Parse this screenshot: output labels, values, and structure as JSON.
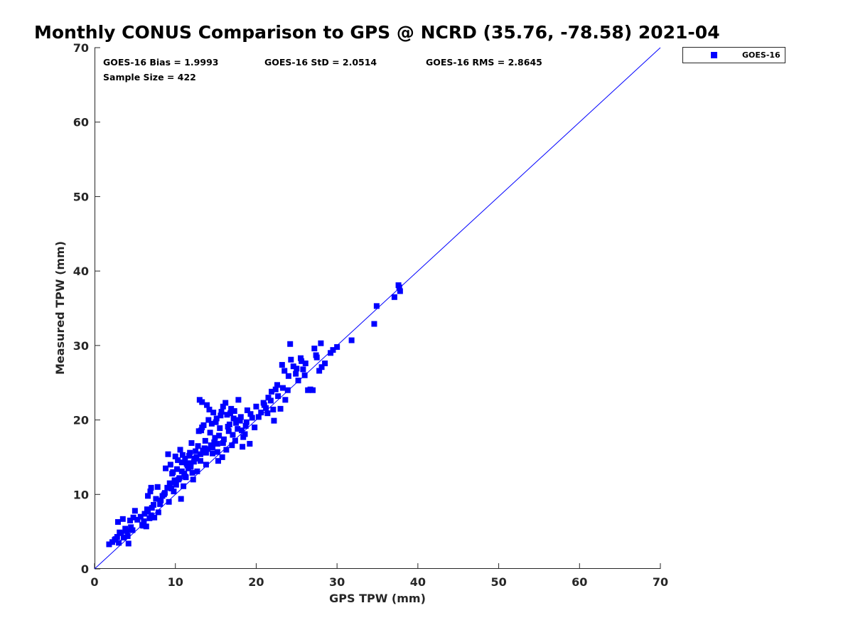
{
  "chart_data": {
    "type": "scatter",
    "title": "Monthly CONUS Comparison to GPS @ NCRD (35.76, -78.58) 2021-04",
    "xlabel": "GPS TPW (mm)",
    "ylabel": "Measured TPW (mm)",
    "xlim": [
      0,
      70
    ],
    "ylim": [
      0,
      70
    ],
    "xticks": [
      "0",
      "10",
      "20",
      "30",
      "40",
      "50",
      "60",
      "70"
    ],
    "yticks": [
      "0",
      "10",
      "20",
      "30",
      "40",
      "50",
      "60",
      "70"
    ],
    "grid": false,
    "legend": {
      "position": "outside top-right",
      "entries": [
        "GOES-16"
      ]
    },
    "stats": {
      "bias": "GOES-16 Bias = 1.9993",
      "std": "GOES-16 StD = 2.0514",
      "rms": "GOES-16 RMS = 2.8645",
      "sample": "Sample Size = 422"
    },
    "reference_line": {
      "name": "1:1 line",
      "x": [
        0,
        70
      ],
      "y": [
        0,
        70
      ]
    },
    "series": [
      {
        "name": "GOES-16",
        "color": "#0000ff",
        "marker": "square",
        "points": [
          [
            1.8,
            3.3
          ],
          [
            2.2,
            3.6
          ],
          [
            2.5,
            3.9
          ],
          [
            2.8,
            4.3
          ],
          [
            3.0,
            3.5
          ],
          [
            3.3,
            4.8
          ],
          [
            3.6,
            4.2
          ],
          [
            4.0,
            5.1
          ],
          [
            4.2,
            3.4
          ],
          [
            4.5,
            5.6
          ],
          [
            2.6,
            4.0
          ],
          [
            3.1,
            4.9
          ],
          [
            3.8,
            5.4
          ],
          [
            4.1,
            4.4
          ],
          [
            2.9,
            6.3
          ],
          [
            3.5,
            6.7
          ],
          [
            4.4,
            6.5
          ],
          [
            4.8,
            6.9
          ],
          [
            5.0,
            7.8
          ],
          [
            4.7,
            5.2
          ],
          [
            5.3,
            6.6
          ],
          [
            5.7,
            7.0
          ],
          [
            6.0,
            5.8
          ],
          [
            6.2,
            7.4
          ],
          [
            6.5,
            8.0
          ],
          [
            6.8,
            6.8
          ],
          [
            7.0,
            7.2
          ],
          [
            7.3,
            8.6
          ],
          [
            7.6,
            9.4
          ],
          [
            7.9,
            7.6
          ],
          [
            6.1,
            6.4
          ],
          [
            6.6,
            7.7
          ],
          [
            7.1,
            8.2
          ],
          [
            7.4,
            6.9
          ],
          [
            5.9,
            5.9
          ],
          [
            6.4,
            5.7
          ],
          [
            6.9,
            10.4
          ],
          [
            7.0,
            10.9
          ],
          [
            6.6,
            9.8
          ],
          [
            7.8,
            11.0
          ],
          [
            8.1,
            8.7
          ],
          [
            8.4,
            9.8
          ],
          [
            8.7,
            10.2
          ],
          [
            9.0,
            10.9
          ],
          [
            9.3,
            11.5
          ],
          [
            9.6,
            12.8
          ],
          [
            9.9,
            11.9
          ],
          [
            10.2,
            13.4
          ],
          [
            10.5,
            12.2
          ],
          [
            10.8,
            14.3
          ],
          [
            8.8,
            13.5
          ],
          [
            9.1,
            15.4
          ],
          [
            9.4,
            14.0
          ],
          [
            9.7,
            13.0
          ],
          [
            10.0,
            15.1
          ],
          [
            10.3,
            14.6
          ],
          [
            10.6,
            16.0
          ],
          [
            10.9,
            15.3
          ],
          [
            11.2,
            14.8
          ],
          [
            11.5,
            13.9
          ],
          [
            9.2,
            9.0
          ],
          [
            9.8,
            10.4
          ],
          [
            10.7,
            9.4
          ],
          [
            11.0,
            11.1
          ],
          [
            11.3,
            12.3
          ],
          [
            11.6,
            13.5
          ],
          [
            11.9,
            14.2
          ],
          [
            12.2,
            12.0
          ],
          [
            12.5,
            15.8
          ],
          [
            12.8,
            16.5
          ],
          [
            13.1,
            14.5
          ],
          [
            13.4,
            15.9
          ],
          [
            13.7,
            17.2
          ],
          [
            14.0,
            16.1
          ],
          [
            14.3,
            18.3
          ],
          [
            14.6,
            15.5
          ],
          [
            14.9,
            17.6
          ],
          [
            15.2,
            16.8
          ],
          [
            15.5,
            18.9
          ],
          [
            15.8,
            15.0
          ],
          [
            12.0,
            16.9
          ],
          [
            12.7,
            13.1
          ],
          [
            13.2,
            18.6
          ],
          [
            13.5,
            19.3
          ],
          [
            13.8,
            14.0
          ],
          [
            14.1,
            20.0
          ],
          [
            14.4,
            16.6
          ],
          [
            14.7,
            21.0
          ],
          [
            15.0,
            19.7
          ],
          [
            15.3,
            14.5
          ],
          [
            13.0,
            22.7
          ],
          [
            13.3,
            22.4
          ],
          [
            13.9,
            22.0
          ],
          [
            14.2,
            21.4
          ],
          [
            15.6,
            20.6
          ],
          [
            15.9,
            21.8
          ],
          [
            16.2,
            22.3
          ],
          [
            16.5,
            19.1
          ],
          [
            16.8,
            20.9
          ],
          [
            17.1,
            18.0
          ],
          [
            16.0,
            17.4
          ],
          [
            16.3,
            16.0
          ],
          [
            16.6,
            18.5
          ],
          [
            16.9,
            21.5
          ],
          [
            17.2,
            20.2
          ],
          [
            17.5,
            19.6
          ],
          [
            17.8,
            22.7
          ],
          [
            18.1,
            20.4
          ],
          [
            18.4,
            17.7
          ],
          [
            18.7,
            19.2
          ],
          [
            17.0,
            16.6
          ],
          [
            17.4,
            17.2
          ],
          [
            17.7,
            18.8
          ],
          [
            18.0,
            19.9
          ],
          [
            18.3,
            16.4
          ],
          [
            18.6,
            18.1
          ],
          [
            18.9,
            21.3
          ],
          [
            19.2,
            16.8
          ],
          [
            19.5,
            20.3
          ],
          [
            19.8,
            19.0
          ],
          [
            20.0,
            21.8
          ],
          [
            20.3,
            20.4
          ],
          [
            20.6,
            21.0
          ],
          [
            20.9,
            22.3
          ],
          [
            21.2,
            21.6
          ],
          [
            21.5,
            23.0
          ],
          [
            21.8,
            22.6
          ],
          [
            22.1,
            21.4
          ],
          [
            22.4,
            24.1
          ],
          [
            22.7,
            23.2
          ],
          [
            21.0,
            22.0
          ],
          [
            21.4,
            20.9
          ],
          [
            21.9,
            23.8
          ],
          [
            22.2,
            19.9
          ],
          [
            22.6,
            24.7
          ],
          [
            23.0,
            21.5
          ],
          [
            23.3,
            24.3
          ],
          [
            23.6,
            22.7
          ],
          [
            23.9,
            24.0
          ],
          [
            24.2,
            30.2
          ],
          [
            23.2,
            27.4
          ],
          [
            23.5,
            26.6
          ],
          [
            24.0,
            25.9
          ],
          [
            24.3,
            28.1
          ],
          [
            24.6,
            27.2
          ],
          [
            24.9,
            26.2
          ],
          [
            25.2,
            25.3
          ],
          [
            25.5,
            28.3
          ],
          [
            25.8,
            26.8
          ],
          [
            26.1,
            27.6
          ],
          [
            25.0,
            26.9
          ],
          [
            25.6,
            27.9
          ],
          [
            26.0,
            26.0
          ],
          [
            26.4,
            24.0
          ],
          [
            26.7,
            24.1
          ],
          [
            27.0,
            24.0
          ],
          [
            27.2,
            29.6
          ],
          [
            27.5,
            28.4
          ],
          [
            27.8,
            26.6
          ],
          [
            28.1,
            27.1
          ],
          [
            27.4,
            28.7
          ],
          [
            28.0,
            30.3
          ],
          [
            28.5,
            27.6
          ],
          [
            29.2,
            29.0
          ],
          [
            29.5,
            29.4
          ],
          [
            30.0,
            29.8
          ],
          [
            31.8,
            30.7
          ],
          [
            34.6,
            32.9
          ],
          [
            34.9,
            35.3
          ],
          [
            37.1,
            36.5
          ],
          [
            37.6,
            38.1
          ],
          [
            37.7,
            37.8
          ],
          [
            37.8,
            37.3
          ],
          [
            12.4,
            14.8
          ],
          [
            11.8,
            15.6
          ],
          [
            13.6,
            16.2
          ],
          [
            14.8,
            17.0
          ],
          [
            15.4,
            17.9
          ],
          [
            16.4,
            20.7
          ],
          [
            17.3,
            21.2
          ],
          [
            12.9,
            18.5
          ],
          [
            13.3,
            19.0
          ],
          [
            14.5,
            19.5
          ],
          [
            15.1,
            20.2
          ],
          [
            15.7,
            21.1
          ],
          [
            16.7,
            19.4
          ],
          [
            17.6,
            20.0
          ],
          [
            18.2,
            18.6
          ],
          [
            18.8,
            19.7
          ],
          [
            19.3,
            20.8
          ],
          [
            11.1,
            12.8
          ],
          [
            11.4,
            14.1
          ],
          [
            11.7,
            15.2
          ],
          [
            12.3,
            14.4
          ],
          [
            12.6,
            15.0
          ],
          [
            13.1,
            15.4
          ],
          [
            13.8,
            15.6
          ],
          [
            14.6,
            16.3
          ],
          [
            15.2,
            15.7
          ],
          [
            15.9,
            16.9
          ],
          [
            10.1,
            11.3
          ],
          [
            10.4,
            12.0
          ],
          [
            10.8,
            13.1
          ],
          [
            11.2,
            12.4
          ],
          [
            11.9,
            13.7
          ],
          [
            12.1,
            12.9
          ],
          [
            9.5,
            10.8
          ],
          [
            9.9,
            11.6
          ],
          [
            8.6,
            10.0
          ],
          [
            8.2,
            9.2
          ]
        ]
      }
    ]
  }
}
